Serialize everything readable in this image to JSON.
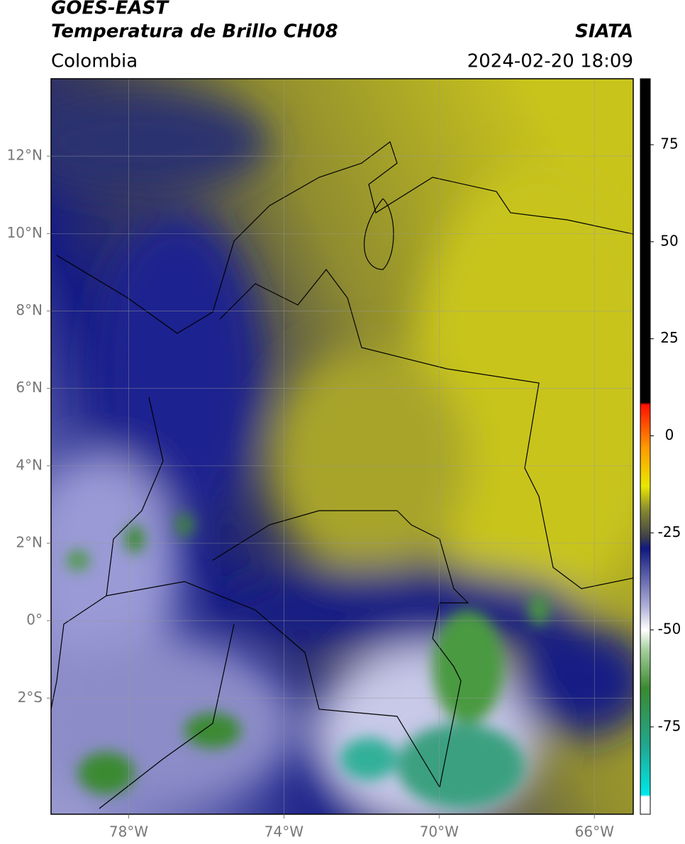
{
  "header": {
    "title_line1": "GOES-EAST",
    "title_line2": "Temperatura de Brillo CH08",
    "source": "SIATA",
    "region": "Colombia",
    "datetime": "2024-02-20 18:09"
  },
  "map": {
    "lon_extent": [
      -80,
      -65
    ],
    "lat_extent": [
      -5,
      14
    ],
    "lon_ticks": [
      {
        "value": -78,
        "label": "78°W"
      },
      {
        "value": -74,
        "label": "74°W"
      },
      {
        "value": -70,
        "label": "70°W"
      },
      {
        "value": -66,
        "label": "66°W"
      }
    ],
    "lat_ticks": [
      {
        "value": 12,
        "label": "12°N"
      },
      {
        "value": 10,
        "label": "10°N"
      },
      {
        "value": 8,
        "label": "8°N"
      },
      {
        "value": 6,
        "label": "6°N"
      },
      {
        "value": 4,
        "label": "4°N"
      },
      {
        "value": 2,
        "label": "2°N"
      },
      {
        "value": 0,
        "label": "0°"
      },
      {
        "value": -2,
        "label": "2°S"
      }
    ],
    "grid": true
  },
  "colorbar": {
    "lim": [
      -97.5,
      92
    ],
    "ticks": [
      75,
      50,
      25,
      0,
      -25,
      -50,
      -75
    ],
    "colormap": [
      {
        "value": -97.5,
        "color": "#ffffff"
      },
      {
        "value": -93,
        "color": "#ffffff"
      },
      {
        "value": -92.5,
        "color": "#00e8e8"
      },
      {
        "value": -80,
        "color": "#20a890"
      },
      {
        "value": -65,
        "color": "#3a8a30"
      },
      {
        "value": -55,
        "color": "#a8d0a0"
      },
      {
        "value": -50,
        "color": "#ffffff"
      },
      {
        "value": -44,
        "color": "#b0b0d8"
      },
      {
        "value": -29,
        "color": "#101880"
      },
      {
        "value": -26,
        "color": "#404048"
      },
      {
        "value": -19,
        "color": "#8a8a30"
      },
      {
        "value": -13,
        "color": "#e8e800"
      },
      {
        "value": -3,
        "color": "#ff9a00"
      },
      {
        "value": 8,
        "color": "#ff1000"
      },
      {
        "value": 8.6,
        "color": "#000000"
      },
      {
        "value": 92,
        "color": "#000000"
      }
    ]
  }
}
